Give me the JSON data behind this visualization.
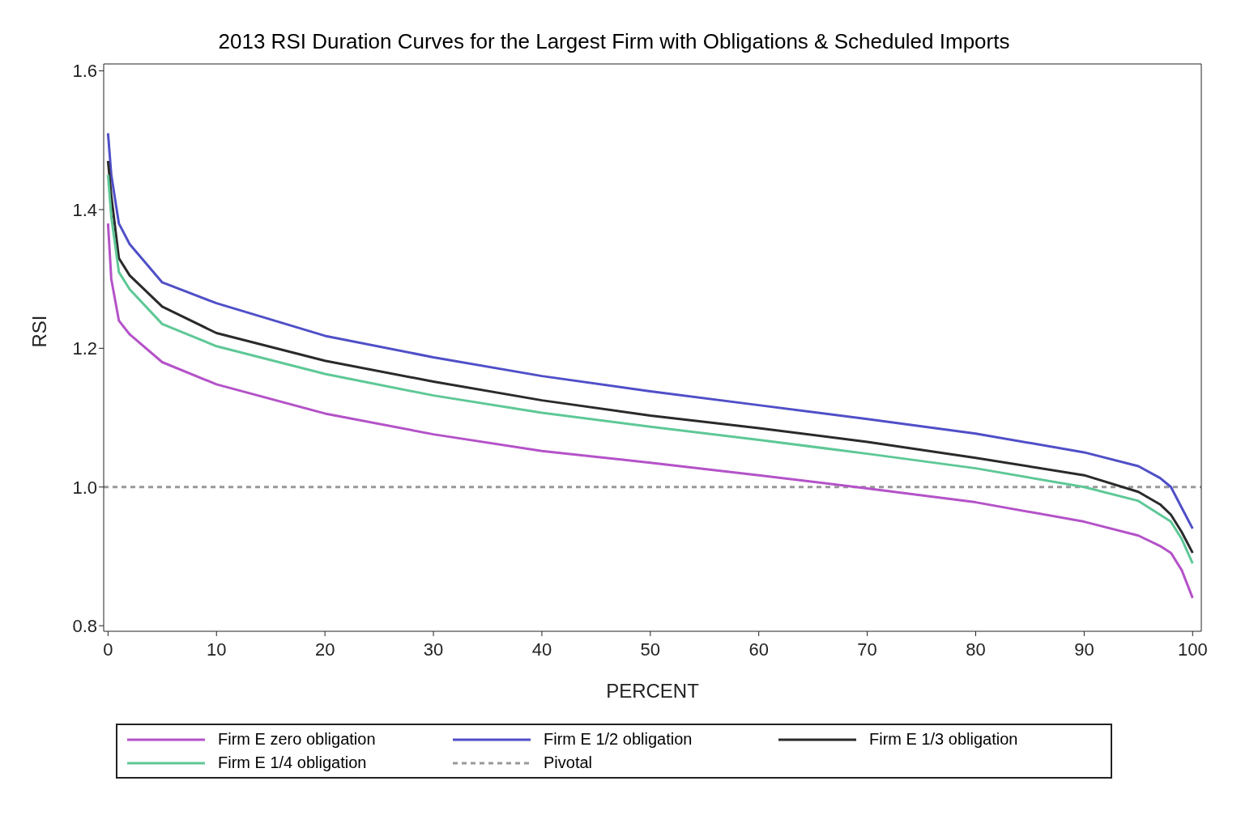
{
  "chart_data": {
    "type": "line",
    "title": "2013 RSI Duration Curves for the Largest Firm with Obligations & Scheduled Imports",
    "xlabel": "PERCENT",
    "ylabel": "RSI",
    "x": [
      0,
      0.3,
      1,
      2,
      5,
      10,
      20,
      30,
      40,
      50,
      60,
      70,
      80,
      90,
      95,
      97,
      98,
      99,
      100
    ],
    "series": [
      {
        "name": "Firm E zero obligation",
        "color": "#b452c8",
        "values": [
          1.38,
          1.3,
          1.24,
          1.22,
          1.18,
          1.148,
          1.106,
          1.076,
          1.052,
          1.035,
          1.017,
          0.998,
          0.978,
          0.95,
          0.93,
          0.915,
          0.905,
          0.88,
          0.84
        ]
      },
      {
        "name": "Firm E 1/2 obligation",
        "color": "#4f4fc8",
        "values": [
          1.51,
          1.45,
          1.38,
          1.35,
          1.295,
          1.265,
          1.218,
          1.187,
          1.16,
          1.138,
          1.118,
          1.098,
          1.077,
          1.05,
          1.03,
          1.013,
          1.0,
          0.97,
          0.94
        ]
      },
      {
        "name": "Firm E 1/3 obligation",
        "color": "#2a2a2a",
        "values": [
          1.47,
          1.42,
          1.33,
          1.305,
          1.26,
          1.222,
          1.182,
          1.152,
          1.125,
          1.103,
          1.085,
          1.065,
          1.042,
          1.017,
          0.993,
          0.975,
          0.96,
          0.935,
          0.905
        ]
      },
      {
        "name": "Firm E 1/4 obligation",
        "color": "#5ec896",
        "values": [
          1.45,
          1.39,
          1.31,
          1.285,
          1.235,
          1.203,
          1.163,
          1.132,
          1.107,
          1.087,
          1.068,
          1.048,
          1.027,
          1.0,
          0.98,
          0.96,
          0.95,
          0.925,
          0.89
        ]
      }
    ],
    "ref_lines": [
      {
        "axis": "y",
        "value": 1.0,
        "label": "Pivotal",
        "color": "#999999",
        "line_style": "dashed"
      }
    ],
    "xlim": [
      -0.4,
      100.8
    ],
    "xticks": [
      0,
      10,
      20,
      30,
      40,
      50,
      60,
      70,
      80,
      90,
      100
    ],
    "ylim": [
      0.792,
      1.61
    ],
    "yticks": [
      0.8,
      {
        "value": 1.0,
        "label": "1.0"
      },
      1.2,
      1.4,
      1.6
    ],
    "grid": false,
    "legend": "bottom",
    "marker": "none",
    "line_style": "solid"
  }
}
